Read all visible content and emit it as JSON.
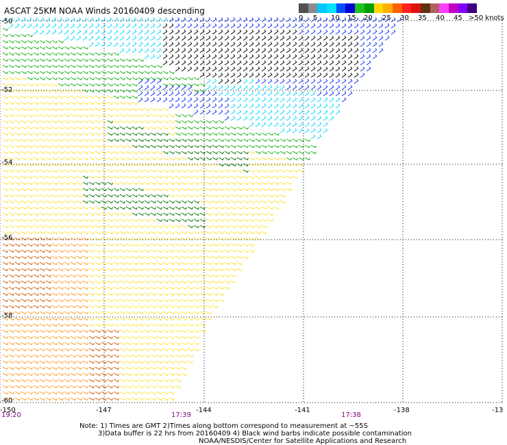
{
  "title": "ASCAT 25KM NOAA Winds 20160409 descending",
  "colorbar": {
    "colors": [
      "#505050",
      "#8c8c8c",
      "#00c8ff",
      "#00e0ff",
      "#0050ff",
      "#0000d0",
      "#20c020",
      "#00a000",
      "#ffd800",
      "#ffb000",
      "#ff6000",
      "#ff2020",
      "#e01010",
      "#603010",
      "#b06060",
      "#ff40ff",
      "#c000c0",
      "#8000ff",
      "#400080"
    ],
    "labels": [
      "0",
      "5",
      "10",
      "15",
      "20",
      "25",
      "30",
      "35",
      "40",
      "45",
      ">50 knots"
    ]
  },
  "map": {
    "lon_ticks": [
      "-150",
      "-147",
      "-144",
      "-141",
      "-138",
      "-13"
    ],
    "lat_ticks": [
      "-50",
      "-52",
      "-54",
      "-56",
      "-58",
      "-60"
    ],
    "times": [
      {
        "label": "19:20",
        "color": "#800080"
      },
      {
        "label": "17:39",
        "color": "#800080"
      },
      {
        "label": "17:38",
        "color": "#800080"
      }
    ],
    "gridline_color": "#000000",
    "barb_colors": {
      "black": "#000000",
      "cyan": "#00d8ff",
      "blue": "#1030ff",
      "green": "#10b010",
      "darkgreen": "#007000",
      "yellow": "#ffe030",
      "orange": "#ff9a20",
      "darkorange": "#d05a00"
    }
  },
  "notes": {
    "line1": "Note: 1) Times are GMT 2)Times along bottom correspond to measurement at ~55S",
    "line2": "3)Data buffer is 22 hrs from 20160409 4) Black wind barbs indicate possible contamination",
    "line3": "NOAA/NESDIS/Center for Satellite Applications and Research"
  }
}
